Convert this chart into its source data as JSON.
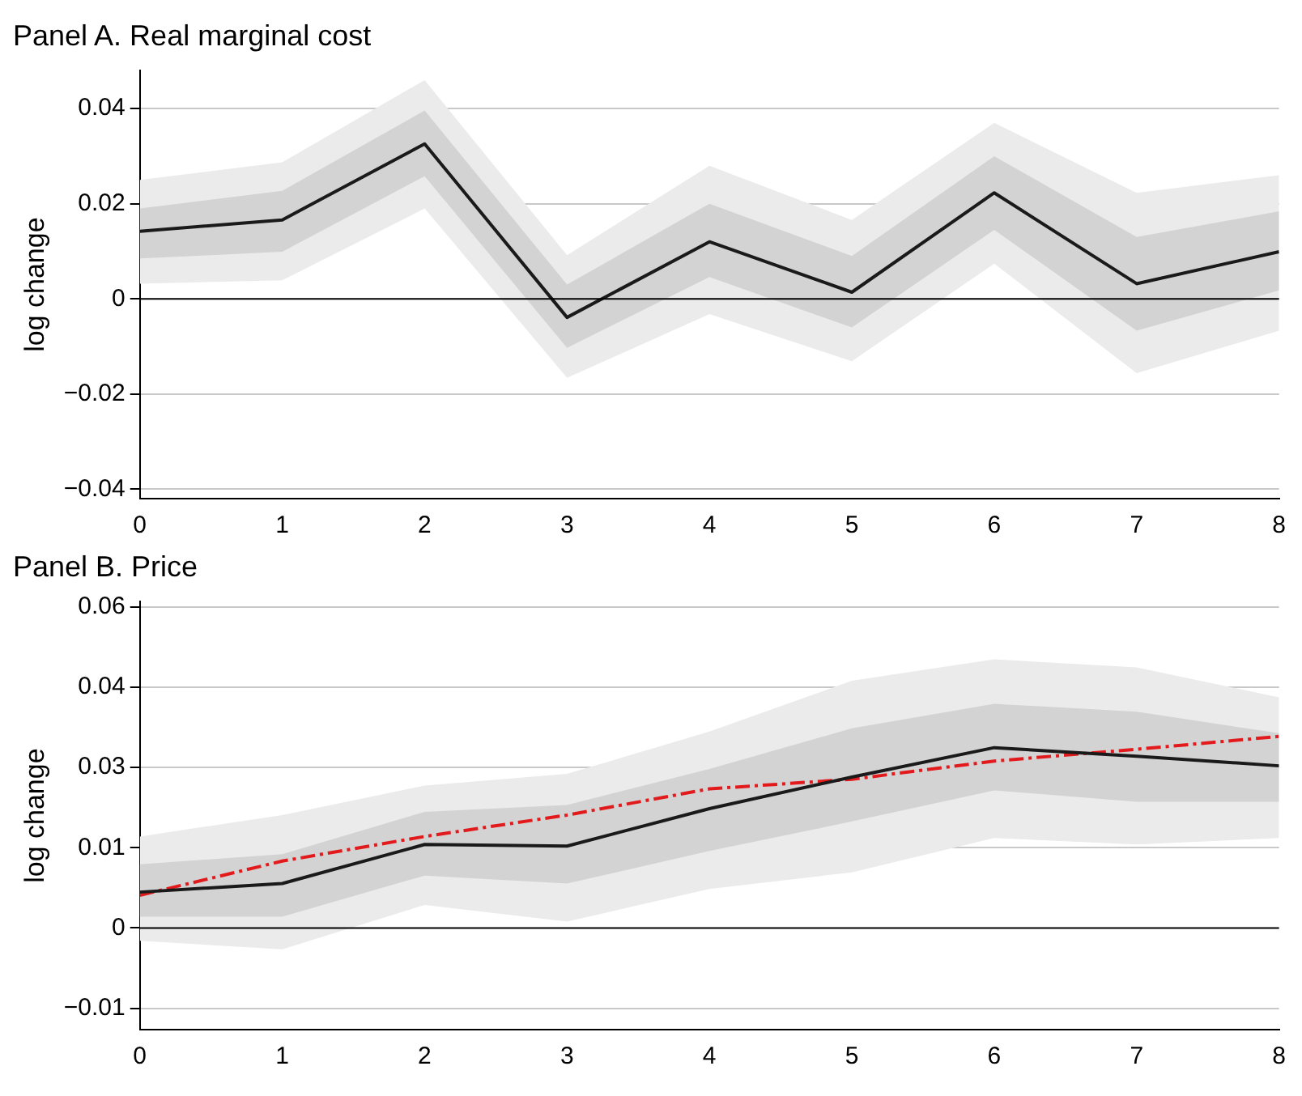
{
  "chart_data": [
    {
      "type": "line",
      "title": "Panel A. Real marginal cost",
      "ylabel": "log change",
      "x": [
        0,
        1,
        2,
        3,
        4,
        5,
        6,
        7,
        8
      ],
      "xlim": [
        0,
        8
      ],
      "xticks": [
        0,
        1,
        2,
        3,
        4,
        5,
        6,
        7,
        8
      ],
      "ylim": [
        -0.042,
        0.048
      ],
      "yticks": [
        {
          "value": -0.04,
          "label": "−0.04"
        },
        {
          "value": -0.02,
          "label": "−0.02"
        },
        0,
        0.02,
        0.04
      ],
      "grid": "y",
      "legend": false,
      "marker": "none",
      "series": [
        {
          "color": "#1a1a1a",
          "line_style": "solid",
          "values": [
            0.0142,
            0.0166,
            0.0326,
            -0.0039,
            0.012,
            0.0014,
            0.0223,
            0.0032,
            0.0099
          ],
          "lower": [
            0.0085,
            0.0099,
            0.0258,
            -0.0103,
            0.0046,
            -0.006,
            0.0145,
            -0.0067,
            0.0018
          ],
          "upper": [
            0.019,
            0.0227,
            0.0396,
            0.003,
            0.02,
            0.009,
            0.03,
            0.013,
            0.0184
          ]
        },
        {
          "color": "#ebebeb",
          "values": [
            null,
            null,
            null,
            null,
            null,
            null,
            null,
            null,
            null
          ],
          "lower": [
            0.0032,
            0.0039,
            0.019,
            -0.0166,
            -0.0032,
            -0.0131,
            0.0074,
            -0.0156,
            -0.0067
          ],
          "upper": [
            0.025,
            0.0287,
            0.046,
            0.0092,
            0.028,
            0.0166,
            0.037,
            0.0223,
            0.026
          ]
        }
      ],
      "ref_lines": [
        {
          "axis": "y",
          "value": 0,
          "color": "#000000"
        }
      ]
    },
    {
      "type": "line",
      "title": "Panel B. Price",
      "ylabel": "log change",
      "x": [
        0,
        1,
        2,
        3,
        4,
        5,
        6,
        7,
        8
      ],
      "xlim": [
        0,
        8
      ],
      "xticks": [
        0,
        1,
        2,
        3,
        4,
        5,
        6,
        7,
        8
      ],
      "ylim": [
        -0.019,
        0.061
      ],
      "yticks": [
        {
          "value": -0.015,
          "label": "−0.01"
        },
        0,
        {
          "value": 0.015,
          "label": "0.01"
        },
        0.03,
        {
          "value": 0.045,
          "label": "0.04"
        },
        0.06
      ],
      "grid": "y",
      "legend": false,
      "marker": "none",
      "series": [
        {
          "color": "#1a1a1a",
          "line_style": "solid",
          "values": [
            0.0067,
            0.0083,
            0.0156,
            0.0153,
            0.0223,
            0.0282,
            0.0337,
            0.0321,
            0.0303
          ],
          "lower": [
            0.0021,
            0.0021,
            0.0098,
            0.0083,
            0.0144,
            0.0199,
            0.0257,
            0.0236,
            0.0236
          ],
          "upper": [
            0.0119,
            0.0138,
            0.0217,
            0.023,
            0.0297,
            0.0373,
            0.0419,
            0.0404,
            0.0364
          ]
        },
        {
          "color": "#ebebeb",
          "values": [
            null,
            null,
            null,
            null,
            null,
            null,
            null,
            null,
            null
          ],
          "lower": [
            -0.0024,
            -0.004,
            0.0043,
            0.0012,
            0.0073,
            0.0104,
            0.0168,
            0.0156,
            0.0168
          ],
          "upper": [
            0.0171,
            0.0211,
            0.0266,
            0.0288,
            0.0367,
            0.0462,
            0.0502,
            0.0487,
            0.0431
          ]
        },
        {
          "color": "#e31a1c",
          "line_style": "dashed",
          "values": [
            0.0061,
            0.0125,
            0.0171,
            0.0211,
            0.026,
            0.0278,
            0.0312,
            0.0334,
            0.0358
          ]
        }
      ],
      "ref_lines": [
        {
          "axis": "y",
          "value": 0,
          "color": "#000000"
        }
      ]
    }
  ]
}
